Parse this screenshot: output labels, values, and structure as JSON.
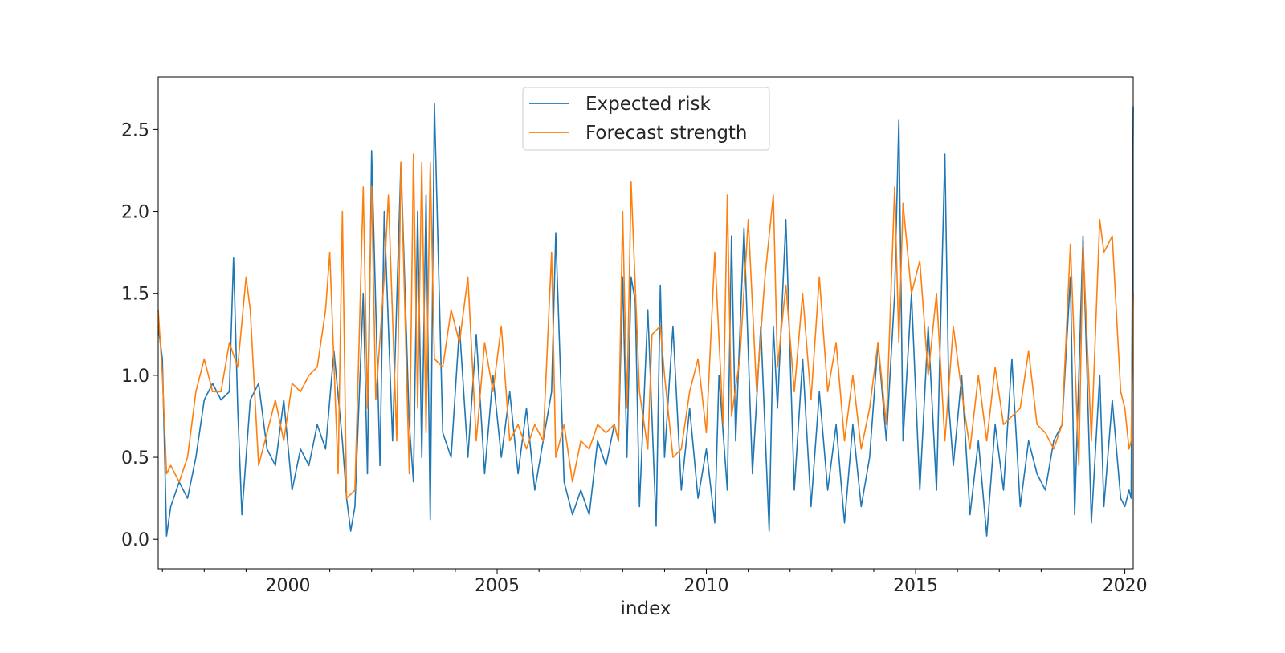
{
  "chart_data": {
    "type": "line",
    "title": "",
    "xlabel": "index",
    "ylabel": "",
    "xlim": [
      1996.9,
      2020.2
    ],
    "ylim": [
      -0.18,
      2.82
    ],
    "x_ticks": [
      2000,
      2005,
      2010,
      2015,
      2020
    ],
    "x_tick_labels": [
      "2000",
      "2005",
      "2010",
      "2015",
      "2020"
    ],
    "y_ticks": [
      0.0,
      0.5,
      1.0,
      1.5,
      2.0,
      2.5
    ],
    "y_tick_labels": [
      "0.0",
      "0.5",
      "1.0",
      "1.5",
      "2.0",
      "2.5"
    ],
    "grid": false,
    "legend_position": "top-center",
    "colors": {
      "expected_risk": "#1f77b4",
      "forecast_strength": "#ff7f0e"
    },
    "series": [
      {
        "name": "Expected risk",
        "color": "#1f77b4",
        "x": [
          1996.9,
          1997.0,
          1997.1,
          1997.2,
          1997.4,
          1997.6,
          1997.8,
          1998.0,
          1998.2,
          1998.4,
          1998.6,
          1998.7,
          1998.8,
          1998.9,
          1999.1,
          1999.3,
          1999.5,
          1999.7,
          1999.9,
          2000.1,
          2000.3,
          2000.5,
          2000.7,
          2000.9,
          2001.1,
          2001.3,
          2001.4,
          2001.5,
          2001.6,
          2001.8,
          2001.9,
          2002.0,
          2002.2,
          2002.3,
          2002.5,
          2002.7,
          2002.9,
          2003.0,
          2003.1,
          2003.2,
          2003.3,
          2003.4,
          2003.5,
          2003.7,
          2003.9,
          2004.1,
          2004.3,
          2004.5,
          2004.7,
          2004.9,
          2005.1,
          2005.3,
          2005.5,
          2005.7,
          2005.9,
          2006.1,
          2006.3,
          2006.4,
          2006.6,
          2006.8,
          2007.0,
          2007.2,
          2007.4,
          2007.6,
          2007.8,
          2007.9,
          2008.0,
          2008.1,
          2008.2,
          2008.3,
          2008.4,
          2008.6,
          2008.8,
          2008.9,
          2009.0,
          2009.2,
          2009.4,
          2009.6,
          2009.8,
          2010.0,
          2010.2,
          2010.3,
          2010.5,
          2010.6,
          2010.7,
          2010.9,
          2011.1,
          2011.3,
          2011.5,
          2011.6,
          2011.7,
          2011.9,
          2012.1,
          2012.3,
          2012.5,
          2012.7,
          2012.9,
          2013.1,
          2013.3,
          2013.5,
          2013.7,
          2013.9,
          2014.1,
          2014.3,
          2014.5,
          2014.6,
          2014.7,
          2014.9,
          2015.1,
          2015.3,
          2015.5,
          2015.7,
          2015.8,
          2015.9,
          2016.1,
          2016.3,
          2016.5,
          2016.7,
          2016.9,
          2017.1,
          2017.3,
          2017.5,
          2017.7,
          2017.9,
          2018.1,
          2018.3,
          2018.5,
          2018.7,
          2018.8,
          2019.0,
          2019.2,
          2019.4,
          2019.5,
          2019.7,
          2019.9,
          2020.0,
          2020.1,
          2020.15,
          2020.2
        ],
        "values": [
          1.3,
          1.1,
          0.02,
          0.2,
          0.35,
          0.25,
          0.5,
          0.85,
          0.95,
          0.85,
          0.9,
          1.72,
          0.8,
          0.15,
          0.85,
          0.95,
          0.55,
          0.45,
          0.85,
          0.3,
          0.55,
          0.45,
          0.7,
          0.55,
          1.15,
          0.6,
          0.25,
          0.05,
          0.2,
          1.5,
          0.4,
          2.37,
          0.45,
          2.0,
          0.6,
          2.3,
          0.7,
          0.35,
          2.0,
          0.5,
          2.1,
          0.12,
          2.66,
          0.65,
          0.5,
          1.3,
          0.5,
          1.25,
          0.4,
          1.0,
          0.5,
          0.9,
          0.4,
          0.8,
          0.3,
          0.6,
          0.9,
          1.87,
          0.35,
          0.15,
          0.3,
          0.15,
          0.6,
          0.45,
          0.7,
          0.6,
          1.6,
          0.5,
          1.6,
          1.45,
          0.2,
          1.4,
          0.08,
          1.55,
          0.5,
          1.3,
          0.3,
          0.8,
          0.25,
          0.55,
          0.1,
          1.0,
          0.3,
          1.85,
          0.6,
          1.9,
          0.4,
          1.3,
          0.05,
          1.3,
          0.8,
          1.95,
          0.3,
          1.1,
          0.2,
          0.9,
          0.3,
          0.7,
          0.1,
          0.7,
          0.2,
          0.5,
          1.2,
          0.6,
          1.5,
          2.56,
          0.6,
          1.5,
          0.3,
          1.3,
          0.3,
          2.35,
          0.8,
          0.45,
          1.0,
          0.15,
          0.6,
          0.02,
          0.7,
          0.3,
          1.1,
          0.2,
          0.6,
          0.4,
          0.3,
          0.6,
          0.7,
          1.6,
          0.15,
          1.85,
          0.1,
          1.0,
          0.2,
          0.85,
          0.25,
          0.2,
          0.3,
          0.25,
          2.64
        ]
      },
      {
        "name": "Forecast strength",
        "color": "#ff7f0e",
        "x": [
          1996.9,
          1997.0,
          1997.1,
          1997.2,
          1997.4,
          1997.6,
          1997.8,
          1998.0,
          1998.2,
          1998.4,
          1998.6,
          1998.8,
          1999.0,
          1999.1,
          1999.3,
          1999.5,
          1999.7,
          1999.9,
          2000.1,
          2000.3,
          2000.5,
          2000.7,
          2000.9,
          2001.0,
          2001.2,
          2001.3,
          2001.4,
          2001.6,
          2001.7,
          2001.8,
          2001.9,
          2002.0,
          2002.1,
          2002.3,
          2002.4,
          2002.6,
          2002.7,
          2002.9,
          2003.0,
          2003.1,
          2003.2,
          2003.3,
          2003.4,
          2003.5,
          2003.7,
          2003.9,
          2004.1,
          2004.3,
          2004.5,
          2004.7,
          2004.9,
          2005.1,
          2005.3,
          2005.5,
          2005.7,
          2005.9,
          2006.1,
          2006.3,
          2006.4,
          2006.6,
          2006.8,
          2007.0,
          2007.2,
          2007.4,
          2007.6,
          2007.8,
          2007.9,
          2008.0,
          2008.1,
          2008.2,
          2008.4,
          2008.6,
          2008.7,
          2008.9,
          2009.0,
          2009.2,
          2009.4,
          2009.6,
          2009.8,
          2010.0,
          2010.2,
          2010.4,
          2010.5,
          2010.6,
          2010.8,
          2011.0,
          2011.2,
          2011.4,
          2011.6,
          2011.7,
          2011.9,
          2012.1,
          2012.3,
          2012.5,
          2012.7,
          2012.9,
          2013.1,
          2013.3,
          2013.5,
          2013.7,
          2013.9,
          2014.1,
          2014.3,
          2014.5,
          2014.6,
          2014.7,
          2014.9,
          2015.1,
          2015.3,
          2015.5,
          2015.7,
          2015.9,
          2016.1,
          2016.3,
          2016.5,
          2016.7,
          2016.9,
          2017.1,
          2017.3,
          2017.5,
          2017.7,
          2017.9,
          2018.1,
          2018.3,
          2018.5,
          2018.7,
          2018.9,
          2019.0,
          2019.2,
          2019.4,
          2019.5,
          2019.7,
          2019.9,
          2020.0,
          2020.1,
          2020.15,
          2020.2
        ],
        "values": [
          1.4,
          1.0,
          0.4,
          0.45,
          0.35,
          0.5,
          0.9,
          1.1,
          0.9,
          0.9,
          1.2,
          1.05,
          1.6,
          1.4,
          0.45,
          0.65,
          0.85,
          0.6,
          0.95,
          0.9,
          1.0,
          1.05,
          1.4,
          1.75,
          0.4,
          2.0,
          0.25,
          0.3,
          1.2,
          2.15,
          0.8,
          2.15,
          0.85,
          1.6,
          2.1,
          0.6,
          2.3,
          0.4,
          2.35,
          0.8,
          2.3,
          0.65,
          2.3,
          1.1,
          1.05,
          1.4,
          1.2,
          1.6,
          0.6,
          1.2,
          0.9,
          1.3,
          0.6,
          0.7,
          0.55,
          0.7,
          0.6,
          1.75,
          0.5,
          0.7,
          0.35,
          0.6,
          0.55,
          0.7,
          0.65,
          0.7,
          0.6,
          2.0,
          0.8,
          2.18,
          0.9,
          0.55,
          1.25,
          1.3,
          1.0,
          0.5,
          0.55,
          0.9,
          1.1,
          0.65,
          1.75,
          0.7,
          2.1,
          0.75,
          1.1,
          1.95,
          0.9,
          1.6,
          2.1,
          1.05,
          1.55,
          0.9,
          1.5,
          0.85,
          1.6,
          0.9,
          1.2,
          0.6,
          1.0,
          0.55,
          0.8,
          1.2,
          0.7,
          2.15,
          1.2,
          2.05,
          1.5,
          1.7,
          1.0,
          1.5,
          0.6,
          1.3,
          0.9,
          0.55,
          1.0,
          0.6,
          1.05,
          0.7,
          0.75,
          0.8,
          1.15,
          0.7,
          0.65,
          0.55,
          0.7,
          1.8,
          0.45,
          1.8,
          0.6,
          1.95,
          1.75,
          1.85,
          0.9,
          0.8,
          0.55,
          0.6,
          1.5
        ]
      }
    ]
  }
}
